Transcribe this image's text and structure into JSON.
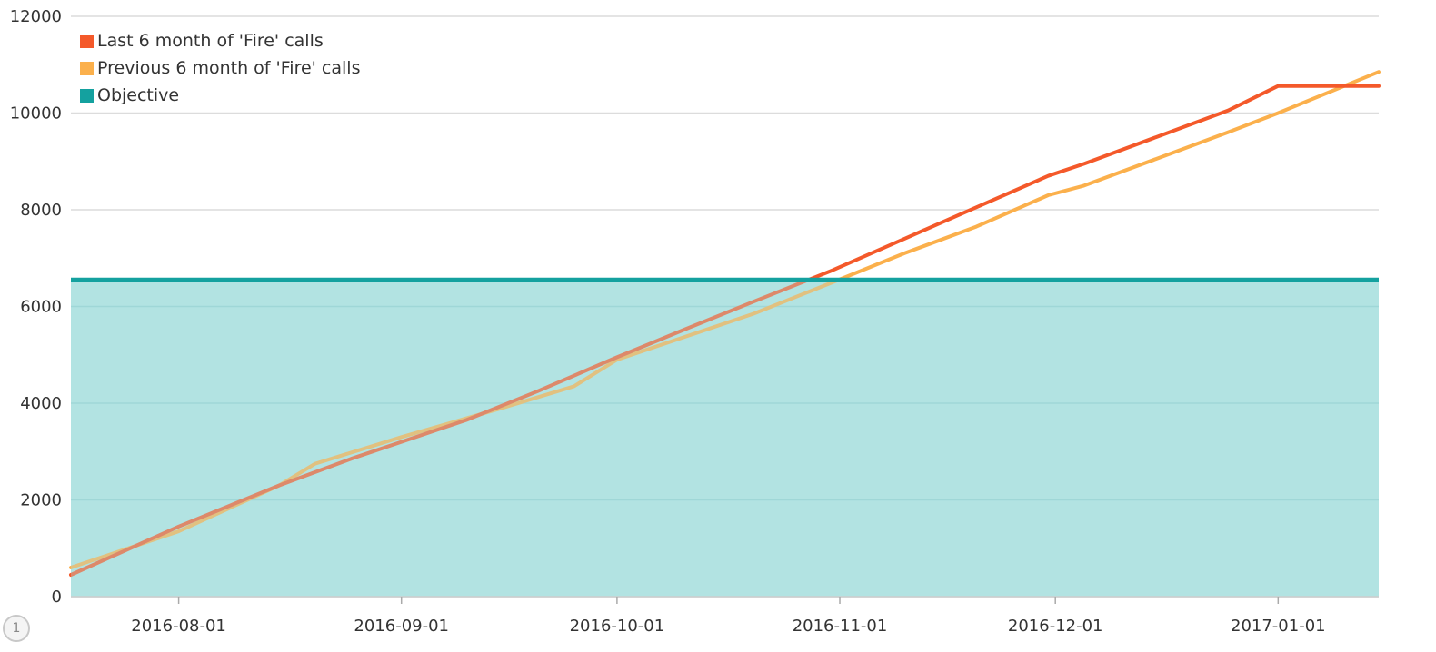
{
  "chart_data": {
    "type": "line",
    "title": "",
    "xlabel": "",
    "ylabel": "",
    "ylim": [
      0,
      12000
    ],
    "xlim": [
      "2016-07-17",
      "2017-01-15"
    ],
    "yticks": [
      "0",
      "2000",
      "4000",
      "6000",
      "8000",
      "10000",
      "12000"
    ],
    "xticks": [
      "2016-08-01",
      "2016-09-01",
      "2016-10-01",
      "2016-11-01",
      "2016-12-01",
      "2017-01-01"
    ],
    "grid": "horizontal",
    "legend_position": "top-left",
    "series": [
      {
        "name": "Last 6 month of 'Fire' calls",
        "color": "#f4592a",
        "points": [
          [
            "2016-07-17",
            450
          ],
          [
            "2016-08-01",
            1450
          ],
          [
            "2016-08-15",
            2300
          ],
          [
            "2016-08-25",
            2850
          ],
          [
            "2016-09-01",
            3200
          ],
          [
            "2016-09-10",
            3650
          ],
          [
            "2016-09-20",
            4250
          ],
          [
            "2016-10-01",
            4950
          ],
          [
            "2016-10-10",
            5500
          ],
          [
            "2016-10-20",
            6100
          ],
          [
            "2016-10-31",
            6750
          ],
          [
            "2016-11-10",
            7400
          ],
          [
            "2016-11-20",
            8050
          ],
          [
            "2016-11-30",
            8700
          ],
          [
            "2016-12-05",
            8950
          ],
          [
            "2016-12-15",
            9500
          ],
          [
            "2016-12-25",
            10050
          ],
          [
            "2017-01-01",
            10560
          ],
          [
            "2017-01-15",
            10560
          ]
        ]
      },
      {
        "name": "Previous 6 month of 'Fire' calls",
        "color": "#fbb04c",
        "points": [
          [
            "2016-07-17",
            600
          ],
          [
            "2016-08-01",
            1350
          ],
          [
            "2016-08-15",
            2300
          ],
          [
            "2016-08-20",
            2750
          ],
          [
            "2016-09-01",
            3300
          ],
          [
            "2016-09-15",
            3900
          ],
          [
            "2016-09-25",
            4350
          ],
          [
            "2016-10-01",
            4900
          ],
          [
            "2016-10-10",
            5350
          ],
          [
            "2016-10-20",
            5850
          ],
          [
            "2016-10-31",
            6500
          ],
          [
            "2016-11-10",
            7100
          ],
          [
            "2016-11-20",
            7650
          ],
          [
            "2016-11-30",
            8300
          ],
          [
            "2016-12-05",
            8500
          ],
          [
            "2016-12-15",
            9050
          ],
          [
            "2016-12-25",
            9600
          ],
          [
            "2017-01-01",
            10000
          ],
          [
            "2017-01-15",
            10850
          ]
        ]
      },
      {
        "name": "Objective",
        "color": "#14a19f",
        "fill": "#b2e3e2",
        "type": "area",
        "points": [
          [
            "2016-07-17",
            6550
          ],
          [
            "2017-01-15",
            6550
          ]
        ]
      }
    ]
  },
  "page_badge": "1"
}
